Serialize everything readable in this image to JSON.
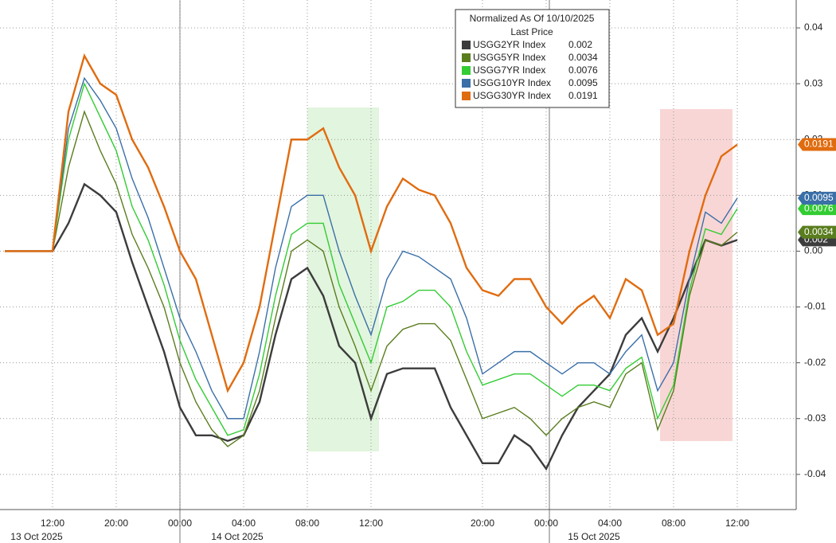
{
  "chart_data": {
    "type": "line",
    "legend_title": "Normalized As Of 10/10/2025",
    "legend_subtitle": "Last Price",
    "categories": [
      null,
      null,
      null,
      "12:00",
      null,
      null,
      null,
      "20:00",
      null,
      null,
      null,
      "00:00",
      null,
      null,
      null,
      "04:00",
      null,
      null,
      null,
      "08:00",
      null,
      null,
      null,
      "12:00",
      null,
      null,
      null,
      null,
      null,
      null,
      "20:00",
      null,
      null,
      null,
      "00:00",
      null,
      null,
      null,
      "04:00",
      null,
      null,
      null,
      "08:00",
      null,
      null,
      null,
      "12:00",
      null,
      null,
      null
    ],
    "date_labels": [
      "13 Oct 2025",
      "14 Oct 2025",
      "15 Oct 2025"
    ],
    "ylim": [
      -0.0463,
      0.045
    ],
    "yticks": [
      0.04,
      0.03,
      0.02,
      0.01,
      {
        "value": 0,
        "label": "0.00"
      },
      -0.01,
      -0.02,
      -0.03,
      -0.04
    ],
    "grid": true,
    "series": [
      {
        "name": "USGG2YR Index",
        "last_price": 0.002,
        "color": "#3c3c3c",
        "values": [
          0,
          0,
          0,
          0,
          0.005,
          0.012,
          0.01,
          0.007,
          -0.002,
          -0.01,
          -0.018,
          -0.028,
          -0.033,
          -0.033,
          -0.034,
          -0.033,
          -0.027,
          -0.015,
          -0.005,
          -0.003,
          -0.008,
          -0.017,
          -0.02,
          -0.03,
          -0.022,
          -0.021,
          -0.021,
          -0.021,
          -0.028,
          -0.033,
          -0.038,
          -0.038,
          -0.033,
          -0.035,
          -0.039,
          -0.033,
          -0.028,
          -0.025,
          -0.022,
          -0.015,
          -0.012,
          -0.018,
          -0.012,
          -0.005,
          0.002,
          0.001,
          0.002,
          null,
          null,
          null
        ]
      },
      {
        "name": "USGG5YR Index",
        "last_price": 0.0034,
        "color": "#5a7d1e",
        "values": [
          0,
          0,
          0,
          0,
          0.015,
          0.025,
          0.018,
          0.012,
          0.003,
          -0.003,
          -0.01,
          -0.02,
          -0.027,
          -0.032,
          -0.035,
          -0.033,
          -0.025,
          -0.012,
          0,
          0.002,
          0,
          -0.01,
          -0.017,
          -0.025,
          -0.017,
          -0.014,
          -0.013,
          -0.013,
          -0.016,
          -0.023,
          -0.03,
          -0.029,
          -0.028,
          -0.03,
          -0.033,
          -0.03,
          -0.028,
          -0.027,
          -0.028,
          -0.022,
          -0.02,
          -0.032,
          -0.025,
          -0.008,
          0.002,
          0.001,
          0.0034,
          null,
          null,
          null
        ]
      },
      {
        "name": "USGG7YR Index",
        "last_price": 0.0076,
        "color": "#33cc33",
        "values": [
          0,
          0,
          0,
          0,
          0.02,
          0.03,
          0.024,
          0.018,
          0.008,
          0.002,
          -0.006,
          -0.016,
          -0.023,
          -0.028,
          -0.033,
          -0.032,
          -0.022,
          -0.008,
          0.003,
          0.005,
          0.005,
          -0.006,
          -0.013,
          -0.02,
          -0.01,
          -0.009,
          -0.007,
          -0.007,
          -0.01,
          -0.018,
          -0.024,
          -0.023,
          -0.022,
          -0.022,
          -0.024,
          -0.026,
          -0.024,
          -0.024,
          -0.025,
          -0.021,
          -0.019,
          -0.03,
          -0.024,
          -0.007,
          0.004,
          0.003,
          0.0076,
          null,
          null,
          null
        ]
      },
      {
        "name": "USGG10YR Index",
        "last_price": 0.0095,
        "color": "#3a6fa8",
        "values": [
          0,
          0,
          0,
          0,
          0.022,
          0.031,
          0.027,
          0.022,
          0.013,
          0.006,
          -0.003,
          -0.012,
          -0.018,
          -0.025,
          -0.03,
          -0.03,
          -0.018,
          -0.003,
          0.008,
          0.01,
          0.01,
          0,
          -0.008,
          -0.015,
          -0.005,
          0,
          -0.001,
          -0.003,
          -0.005,
          -0.012,
          -0.022,
          -0.02,
          -0.018,
          -0.018,
          -0.02,
          -0.022,
          -0.02,
          -0.02,
          -0.022,
          -0.018,
          -0.015,
          -0.025,
          -0.02,
          -0.005,
          0.007,
          0.005,
          0.0095,
          null,
          null,
          null
        ]
      },
      {
        "name": "USGG30YR Index",
        "last_price": 0.0191,
        "color": "#e06c10",
        "values": [
          0,
          0,
          0,
          0,
          0.025,
          0.035,
          0.03,
          0.028,
          0.02,
          0.015,
          0.008,
          0,
          -0.005,
          -0.015,
          -0.025,
          -0.02,
          -0.01,
          0.005,
          0.02,
          0.02,
          0.022,
          0.015,
          0.01,
          0,
          0.008,
          0.013,
          0.011,
          0.01,
          0.005,
          -0.003,
          -0.007,
          -0.008,
          -0.005,
          -0.005,
          -0.01,
          -0.013,
          -0.01,
          -0.008,
          -0.012,
          -0.005,
          -0.007,
          -0.015,
          -0.013,
          0,
          0.01,
          0.017,
          0.0191,
          null,
          null,
          null
        ]
      }
    ]
  }
}
